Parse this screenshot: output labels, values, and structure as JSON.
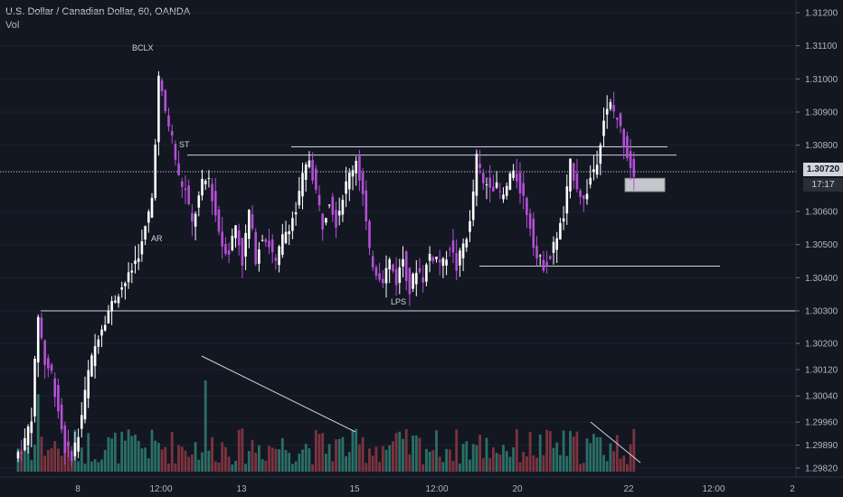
{
  "header": {
    "symbol_line": "U.S. Dollar / Canadian Dollar, 60, OANDA",
    "indicator": "Vol"
  },
  "price_axis": {
    "current_price": "1.30720",
    "countdown": "17:17"
  },
  "colors": {
    "background": "#131722",
    "bull_candle": "#ffffff",
    "bear_candle": "#b44fd6",
    "volume_up": "#2f7f72",
    "volume_down": "#8e3a44",
    "annotation_line": "#d1d4dc"
  },
  "chart_data": {
    "type": "candlestick",
    "y_axis": {
      "ylim": [
        1.298,
        1.3124
      ],
      "ticks": [
        "1.31200",
        "1.31100",
        "1.31000",
        "1.30900",
        "1.30800",
        "1.30720",
        "1.30600",
        "1.30500",
        "1.30400",
        "1.30300",
        "1.30200",
        "1.30120",
        "1.30040",
        "1.29960",
        "1.29890",
        "1.29820"
      ]
    },
    "x_axis": {
      "ticks": [
        "8",
        "12:00",
        "13",
        "15",
        "12:00",
        "20",
        "22",
        "12:00",
        "2"
      ]
    },
    "annotations": [
      {
        "label": "BCLX",
        "price": 1.3104
      },
      {
        "label": "ST",
        "price": 1.3078
      },
      {
        "label": "AR",
        "price": 1.3053
      },
      {
        "label": "LPS",
        "price": 1.3036
      }
    ],
    "horizontal_levels": [
      1.30795,
      1.3077,
      1.30435,
      1.303
    ],
    "price_path": [
      [
        0,
        1.2985
      ],
      [
        3,
        1.299
      ],
      [
        5,
        1.2998
      ],
      [
        7,
        1.3029
      ],
      [
        9,
        1.3014
      ],
      [
        11,
        1.3011
      ],
      [
        13,
        1.3
      ],
      [
        15,
        1.2988
      ],
      [
        17,
        1.2986
      ],
      [
        19,
        1.2992
      ],
      [
        22,
        1.3011
      ],
      [
        25,
        1.3023
      ],
      [
        28,
        1.303
      ],
      [
        31,
        1.3036
      ],
      [
        34,
        1.304
      ],
      [
        38,
        1.305
      ],
      [
        41,
        1.3064
      ],
      [
        43,
        1.31
      ],
      [
        45,
        1.309
      ],
      [
        47,
        1.3082
      ],
      [
        49,
        1.307
      ],
      [
        51,
        1.3066
      ],
      [
        53,
        1.3056
      ],
      [
        56,
        1.3068
      ],
      [
        58,
        1.307
      ],
      [
        60,
        1.3059
      ],
      [
        62,
        1.305
      ],
      [
        64,
        1.3048
      ],
      [
        66,
        1.3056
      ],
      [
        68,
        1.3045
      ],
      [
        70,
        1.306
      ],
      [
        72,
        1.3046
      ],
      [
        74,
        1.3053
      ],
      [
        76,
        1.305
      ],
      [
        78,
        1.3044
      ],
      [
        80,
        1.3052
      ],
      [
        82,
        1.3056
      ],
      [
        84,
        1.306
      ],
      [
        86,
        1.307
      ],
      [
        88,
        1.3076
      ],
      [
        90,
        1.3066
      ],
      [
        92,
        1.3056
      ],
      [
        94,
        1.3064
      ],
      [
        96,
        1.3057
      ],
      [
        98,
        1.3065
      ],
      [
        100,
        1.3071
      ],
      [
        102,
        1.3076
      ],
      [
        104,
        1.3065
      ],
      [
        106,
        1.3047
      ],
      [
        108,
        1.3042
      ],
      [
        110,
        1.304
      ],
      [
        112,
        1.3045
      ],
      [
        114,
        1.3039
      ],
      [
        116,
        1.3046
      ],
      [
        118,
        1.3036
      ],
      [
        120,
        1.3043
      ],
      [
        122,
        1.304
      ],
      [
        124,
        1.3047
      ],
      [
        126,
        1.3046
      ],
      [
        128,
        1.3044
      ],
      [
        130,
        1.305
      ],
      [
        132,
        1.3043
      ],
      [
        134,
        1.305
      ],
      [
        136,
        1.3056
      ],
      [
        138,
        1.3076
      ],
      [
        140,
        1.3068
      ],
      [
        142,
        1.3069
      ],
      [
        144,
        1.3067
      ],
      [
        146,
        1.3064
      ],
      [
        148,
        1.3071
      ],
      [
        150,
        1.307
      ],
      [
        152,
        1.3064
      ],
      [
        154,
        1.3056
      ],
      [
        156,
        1.3046
      ],
      [
        158,
        1.3044
      ],
      [
        160,
        1.3046
      ],
      [
        162,
        1.3053
      ],
      [
        164,
        1.3058
      ],
      [
        166,
        1.3074
      ],
      [
        168,
        1.3068
      ],
      [
        170,
        1.3063
      ],
      [
        172,
        1.307
      ],
      [
        174,
        1.3076
      ],
      [
        176,
        1.3088
      ],
      [
        178,
        1.3092
      ],
      [
        180,
        1.3088
      ],
      [
        182,
        1.3081
      ],
      [
        184,
        1.3074
      ],
      [
        185,
        1.3072
      ]
    ],
    "projection_box": {
      "low": 1.3066,
      "high": 1.307
    }
  }
}
